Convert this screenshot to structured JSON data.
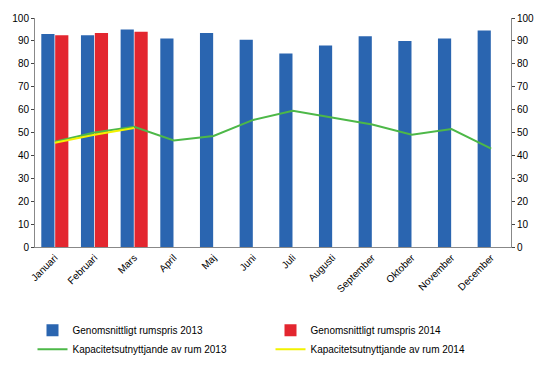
{
  "chart_data": {
    "type": "bar",
    "categories": [
      "Januari",
      "Februari",
      "Mars",
      "April",
      "Maj",
      "Juni",
      "Juli",
      "Augusti",
      "September",
      "Oktober",
      "November",
      "December"
    ],
    "series": [
      {
        "name": "Genomsnittligt rumspris 2013",
        "type": "bar",
        "color": "#2a65b0",
        "values": [
          93,
          92.5,
          95,
          91,
          93.5,
          90.5,
          84.5,
          88,
          92,
          90,
          91,
          94.5
        ]
      },
      {
        "name": "Genomsnittligt rumspris 2014",
        "type": "bar",
        "color": "#e3262f",
        "values": [
          92.5,
          93.5,
          94,
          null,
          null,
          null,
          null,
          null,
          null,
          null,
          null,
          null
        ]
      },
      {
        "name": "Kapacitetsutnyttjande av rum 2013",
        "type": "line",
        "axis": "y2",
        "color": "#4db848",
        "values": [
          46,
          50,
          52.5,
          46.5,
          48.5,
          55.5,
          59.5,
          56.5,
          53.5,
          49,
          51.5,
          43
        ]
      },
      {
        "name": "Kapacitetsutnyttjande av rum 2014",
        "type": "line",
        "axis": "y2",
        "color": "#f2f200",
        "values": [
          45.5,
          49,
          52,
          null,
          null,
          null,
          null,
          null,
          null,
          null,
          null,
          null
        ]
      }
    ],
    "ylim": [
      0,
      100
    ],
    "yticks": [
      0,
      10,
      20,
      30,
      40,
      50,
      60,
      70,
      80,
      90,
      100
    ],
    "y2lim": [
      0,
      100
    ],
    "y2ticks": [
      0,
      10,
      20,
      30,
      40,
      50,
      60,
      70,
      80,
      90,
      100
    ],
    "grid": false,
    "legend": "bottom"
  }
}
